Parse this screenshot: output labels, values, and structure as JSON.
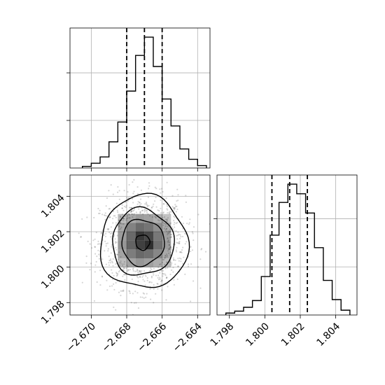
{
  "chart_data": [
    {
      "type": "histogram",
      "panel": "top-left",
      "variable": "x",
      "xlim": [
        -2.6712,
        -2.6633
      ],
      "bins": [
        -2.6705,
        -2.67,
        -2.6695,
        -2.669,
        -2.6685,
        -2.668,
        -2.6675,
        -2.667,
        -2.6665,
        -2.666,
        -2.6655,
        -2.665,
        -2.6645,
        -2.664,
        -2.6635
      ],
      "counts": [
        2,
        6,
        14,
        33,
        58,
        97,
        142,
        165,
        128,
        87,
        53,
        24,
        11,
        3
      ],
      "quantiles": [
        -2.668,
        -2.667,
        -2.666
      ],
      "grid": true,
      "xtick_labels": [],
      "ytick_labels": []
    },
    {
      "type": "scatter-density",
      "panel": "bottom-left",
      "x_variable": "x",
      "y_variable": "y",
      "xlim": [
        -2.6712,
        -2.6633
      ],
      "ylim": [
        1.7973,
        1.8052
      ],
      "center": [
        -2.6671,
        1.8014
      ],
      "sigma": [
        0.0012,
        0.0013
      ],
      "density_grid": {
        "x_edges": [
          -2.6685,
          -2.668,
          -2.6675,
          -2.667,
          -2.6665,
          -2.666,
          -2.6655
        ],
        "y_edges": [
          1.8,
          1.8005,
          1.801,
          1.8015,
          1.802,
          1.8025,
          1.803
        ],
        "levels": [
          [
            0.3,
            0.42,
            0.48,
            0.45,
            0.38,
            0.3
          ],
          [
            0.42,
            0.6,
            0.7,
            0.66,
            0.55,
            0.4
          ],
          [
            0.48,
            0.72,
            0.88,
            0.96,
            0.66,
            0.46
          ],
          [
            0.46,
            0.7,
            0.92,
            0.85,
            0.62,
            0.44
          ],
          [
            0.4,
            0.58,
            0.68,
            0.64,
            0.52,
            0.38
          ],
          [
            0.3,
            0.4,
            0.46,
            0.43,
            0.36,
            0.28
          ]
        ]
      },
      "contour_levels": 4,
      "grid": true,
      "xtick_labels": [
        "−2.670",
        "−2.668",
        "−2.666",
        "−2.664"
      ],
      "xtick_values": [
        -2.67,
        -2.668,
        -2.666,
        -2.664
      ],
      "ytick_labels": [
        "1.798",
        "1.800",
        "1.802",
        "1.804"
      ],
      "ytick_values": [
        1.798,
        1.8,
        1.802,
        1.804
      ]
    },
    {
      "type": "histogram",
      "panel": "bottom-right",
      "variable": "y",
      "xlim": [
        1.7973,
        1.8052
      ],
      "bins": [
        1.7978,
        1.7983,
        1.7988,
        1.7993,
        1.7998,
        1.8003,
        1.8008,
        1.8013,
        1.8018,
        1.8023,
        1.8028,
        1.8033,
        1.8038,
        1.8043,
        1.8048
      ],
      "counts": [
        2,
        4,
        8,
        15,
        40,
        83,
        117,
        136,
        126,
        106,
        70,
        36,
        16,
        5
      ],
      "quantiles": [
        1.8004,
        1.8014,
        1.8024
      ],
      "grid": true,
      "xtick_labels": [
        "1.798",
        "1.800",
        "1.802",
        "1.804"
      ],
      "xtick_values": [
        1.798,
        1.8,
        1.802,
        1.804
      ],
      "ytick_labels": []
    }
  ]
}
